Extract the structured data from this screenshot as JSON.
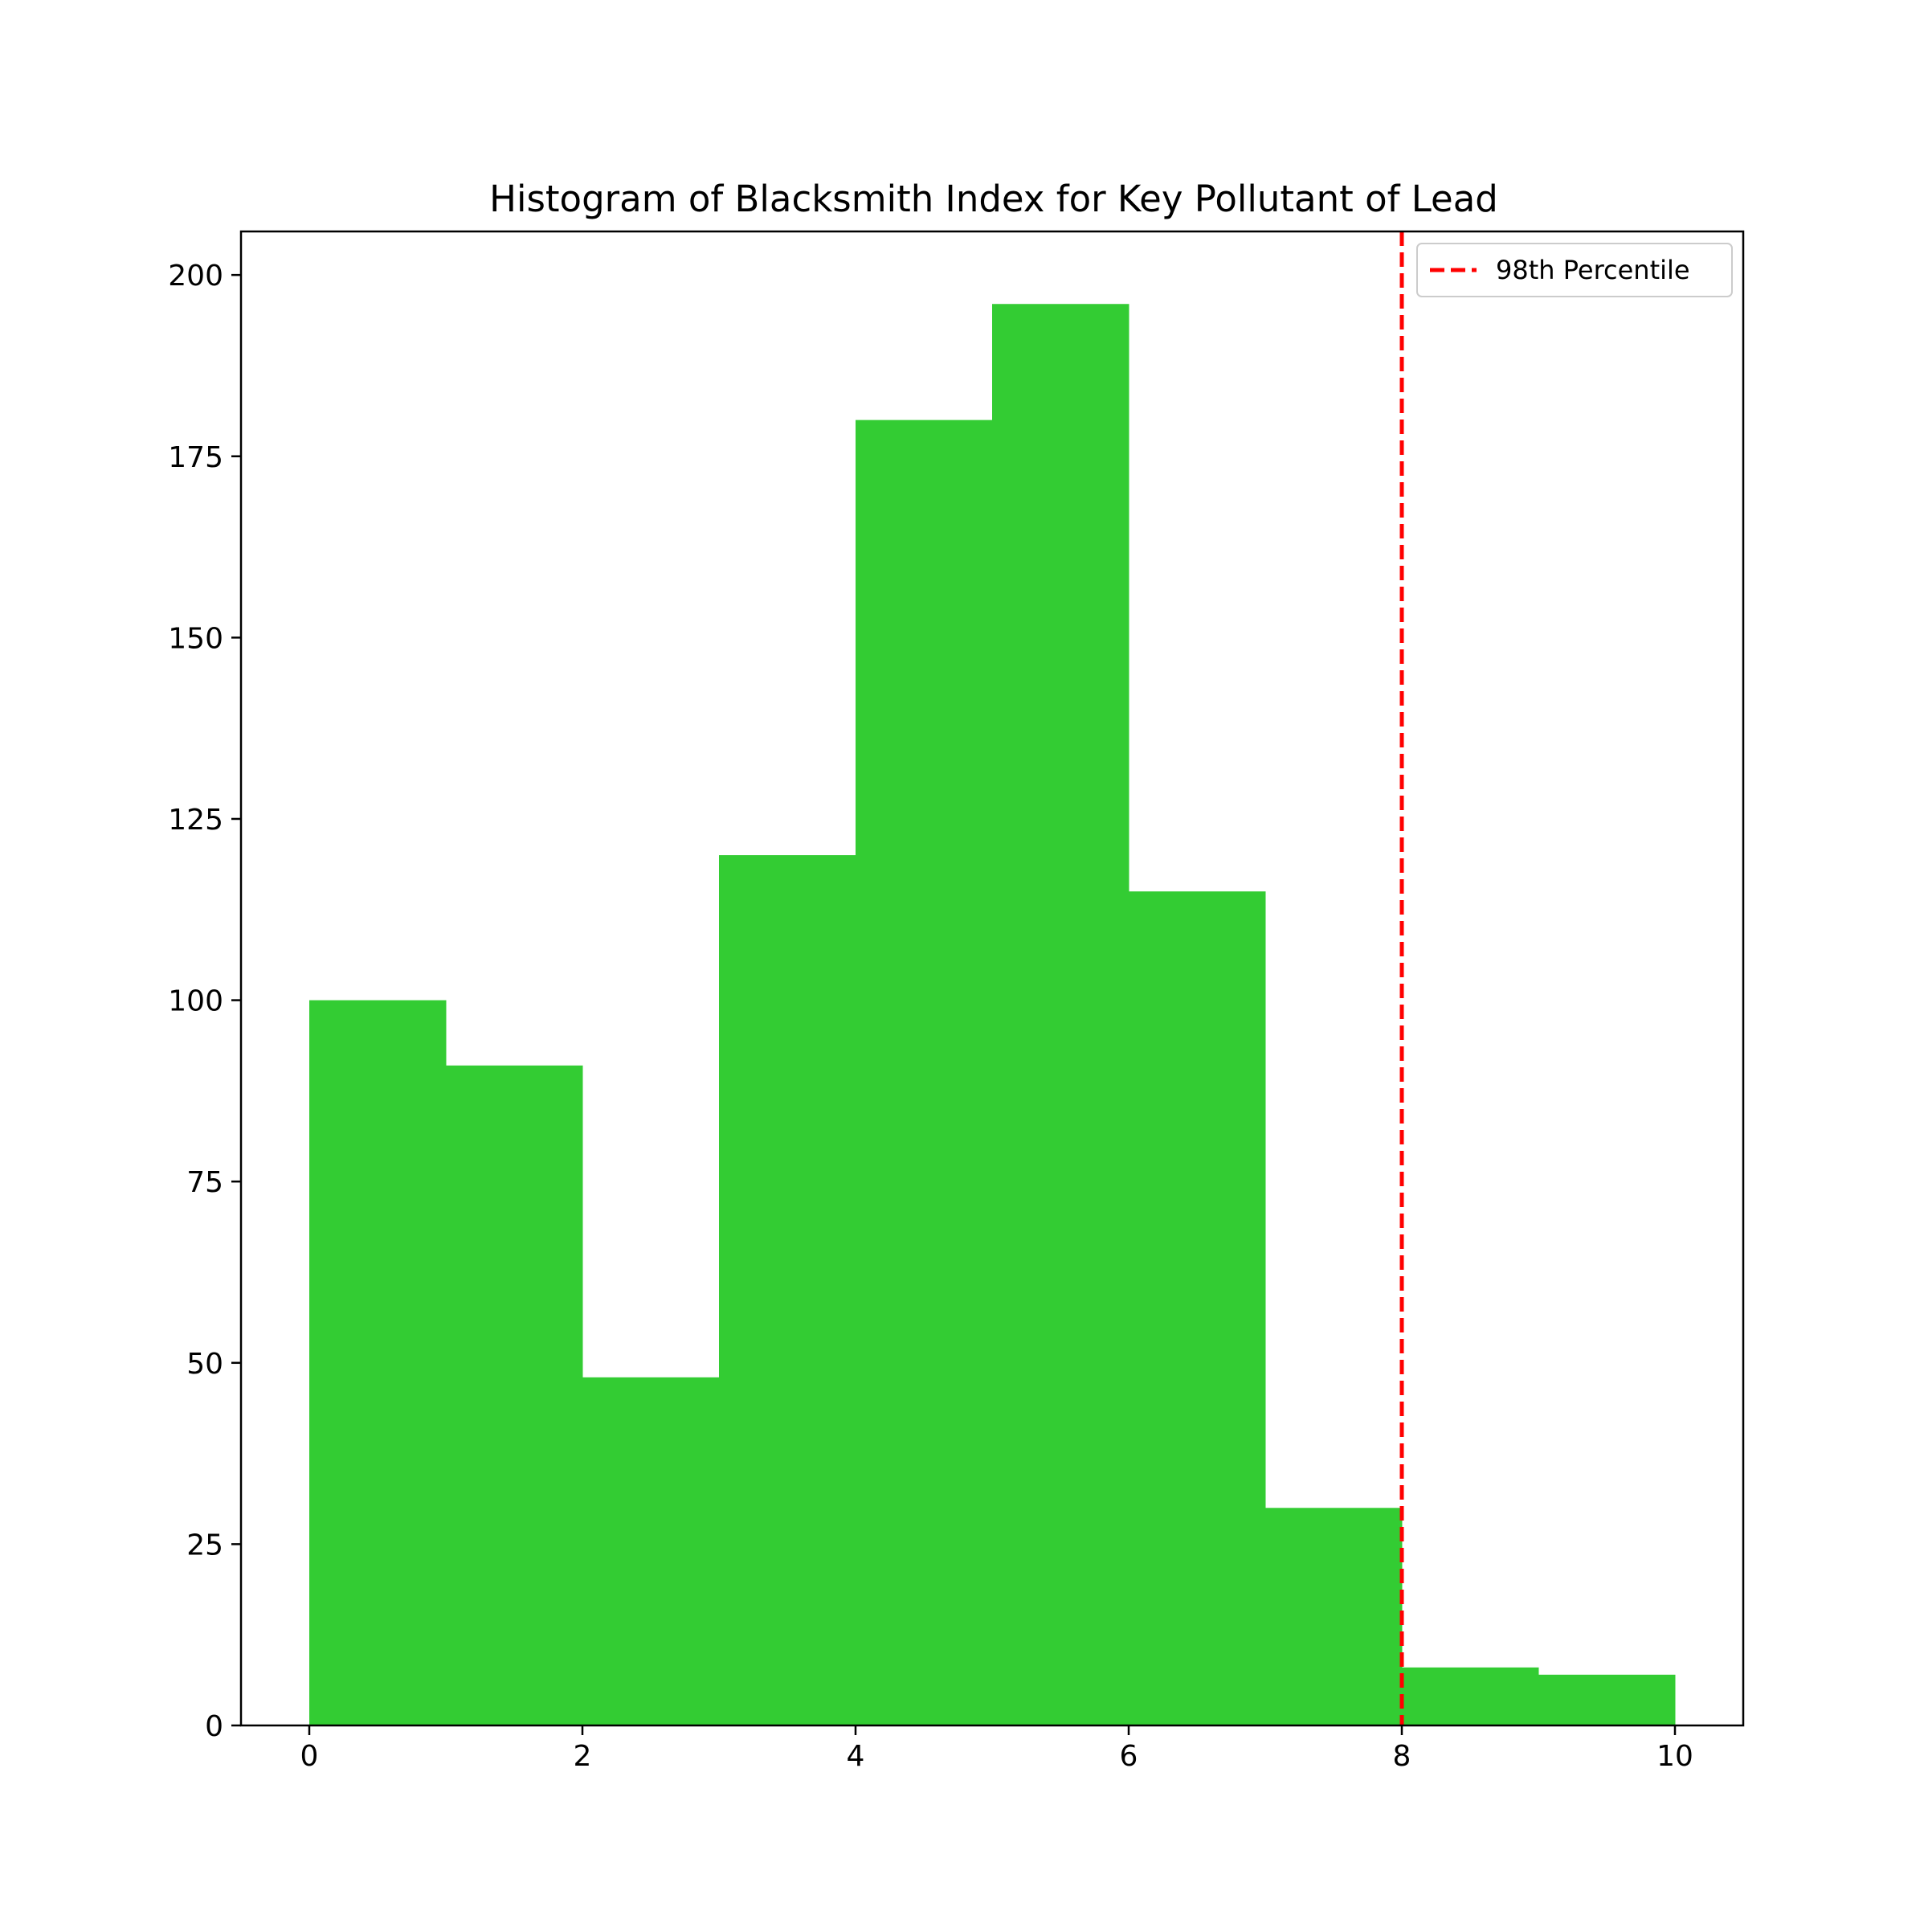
{
  "chart_data": {
    "type": "bar",
    "title": "Histogram of Blacksmith Index for Key Pollutant of Lead",
    "xlabel": "",
    "ylabel": "",
    "bin_edges": [
      0,
      1,
      2,
      3,
      4,
      5,
      6,
      7,
      8,
      9,
      10
    ],
    "values": [
      100,
      91,
      48,
      120,
      180,
      196,
      115,
      30,
      8,
      7
    ],
    "xlim": [
      -0.5,
      10.5
    ],
    "ylim": [
      0,
      206
    ],
    "x_ticks": [
      0,
      2,
      4,
      6,
      8,
      10
    ],
    "y_ticks": [
      0,
      25,
      50,
      75,
      100,
      125,
      150,
      175,
      200
    ],
    "grid": false,
    "bar_color": "#33cc33",
    "reference_line": {
      "label": "98th Percentile",
      "x": 8,
      "color": "#ff0000",
      "style": "dashed"
    },
    "legend": {
      "placement": "top-right",
      "entries": [
        "98th Percentile"
      ]
    }
  }
}
